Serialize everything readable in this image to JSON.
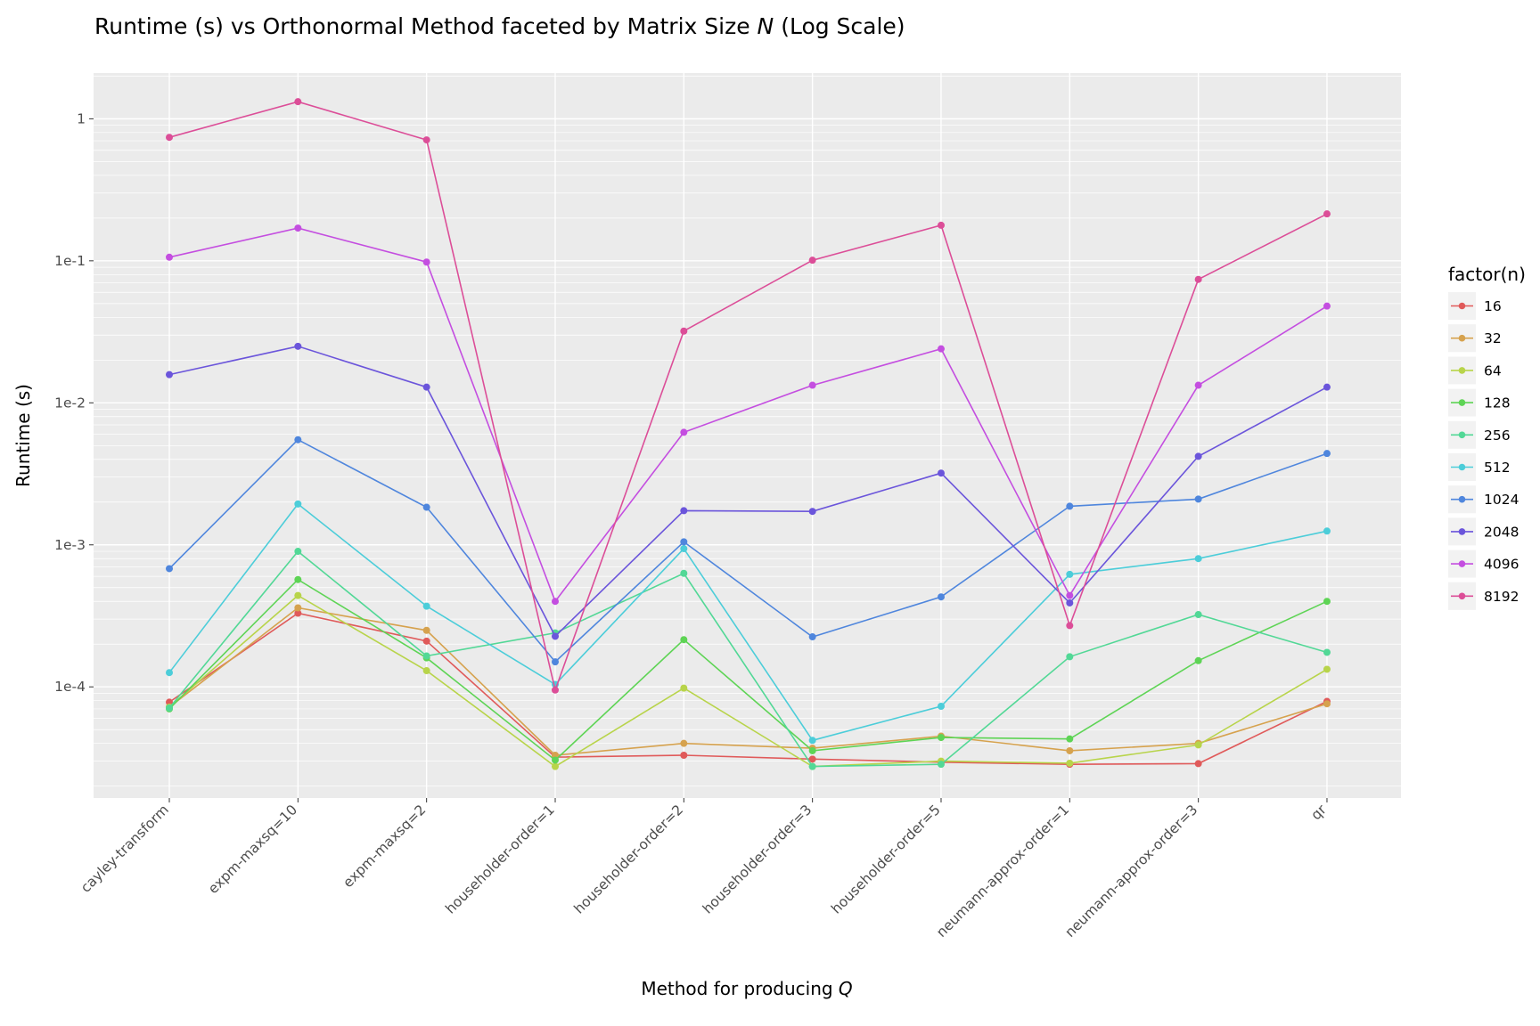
{
  "chart_data": {
    "type": "line",
    "title": "Runtime (s) vs Orthonormal Method faceted by Matrix Size N (Log Scale)",
    "title_parts": [
      "Runtime (s) vs Orthonormal Method faceted by Matrix Size ",
      "N",
      " (Log Scale)"
    ],
    "xlabel": "Method for producing Q",
    "xlabel_parts": [
      "Method for producing ",
      "Q"
    ],
    "ylabel": "Runtime (s)",
    "y_scale": "log10",
    "ylim": [
      1.65e-05,
      2.1
    ],
    "y_ticks": [
      {
        "value": 1,
        "label": "1"
      },
      {
        "value": 0.1,
        "label": "1e-1"
      },
      {
        "value": 0.01,
        "label": "1e-2"
      },
      {
        "value": 0.001,
        "label": "1e-3"
      },
      {
        "value": 0.0001,
        "label": "1e-4"
      }
    ],
    "grid": true,
    "legend_title": "factor(n)",
    "legend_position": "right",
    "categories": [
      "cayley-transform",
      "expm-maxsq=10",
      "expm-maxsq=2",
      "householder-order=1",
      "householder-order=2",
      "householder-order=3",
      "householder-order=5",
      "neumann-approx-order=1",
      "neumann-approx-order=3",
      "qr"
    ],
    "series": [
      {
        "name": "16",
        "color": "#e05a5a",
        "values": [
          7.8e-05,
          0.00033,
          0.00021,
          3.2e-05,
          3.3e-05,
          3.1e-05,
          2.95e-05,
          2.85e-05,
          2.88e-05,
          7.9e-05
        ]
      },
      {
        "name": "32",
        "color": "#d6a24e",
        "values": [
          7.2e-05,
          0.00036,
          0.00025,
          3.3e-05,
          4e-05,
          3.7e-05,
          4.5e-05,
          3.55e-05,
          4e-05,
          7.6e-05
        ]
      },
      {
        "name": "64",
        "color": "#b8d44a",
        "values": [
          7.2e-05,
          0.00044,
          0.00013,
          2.75e-05,
          9.8e-05,
          2.75e-05,
          3e-05,
          2.9e-05,
          3.9e-05,
          0.000133
        ]
      },
      {
        "name": "128",
        "color": "#5ed455",
        "values": [
          7e-05,
          0.00057,
          0.00016,
          3.05e-05,
          0.000215,
          3.55e-05,
          4.4e-05,
          4.3e-05,
          0.000153,
          0.0004
        ]
      },
      {
        "name": "256",
        "color": "#52d896",
        "values": [
          7.1e-05,
          0.0009,
          0.000165,
          0.00024,
          0.00063,
          2.75e-05,
          2.85e-05,
          0.000163,
          0.000323,
          0.000175
        ]
      },
      {
        "name": "512",
        "color": "#4ccdd9",
        "values": [
          0.000126,
          0.00194,
          0.00037,
          0.000104,
          0.00094,
          4.2e-05,
          7.3e-05,
          0.00062,
          0.0008,
          0.00125
        ]
      },
      {
        "name": "1024",
        "color": "#4f86dd",
        "values": [
          0.00068,
          0.0055,
          0.00184,
          0.00015,
          0.00105,
          0.000225,
          0.00043,
          0.00187,
          0.0021,
          0.0044
        ]
      },
      {
        "name": "2048",
        "color": "#6b55db",
        "values": [
          0.0158,
          0.025,
          0.0129,
          0.000227,
          0.00174,
          0.00172,
          0.0032,
          0.00039,
          0.0042,
          0.0129
        ]
      },
      {
        "name": "4096",
        "color": "#c44ee0",
        "values": [
          0.106,
          0.17,
          0.098,
          0.0004,
          0.0062,
          0.0133,
          0.024,
          0.00044,
          0.0133,
          0.048
        ]
      },
      {
        "name": "8192",
        "color": "#dc4e98",
        "values": [
          0.74,
          1.32,
          0.71,
          9.5e-05,
          0.032,
          0.101,
          0.178,
          0.00027,
          0.074,
          0.214
        ]
      }
    ]
  }
}
